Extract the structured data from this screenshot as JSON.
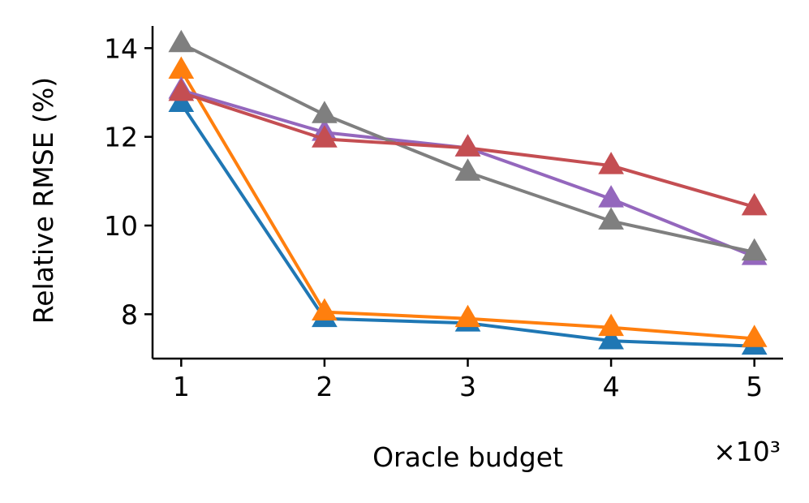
{
  "chart_data": {
    "type": "line",
    "xlabel": "Oracle budget",
    "ylabel": "Relative RMSE (%)",
    "x_multiplier_label": "×10³",
    "x": [
      1,
      2,
      3,
      4,
      5
    ],
    "x_ticks": [
      1,
      2,
      3,
      4,
      5
    ],
    "y_ticks": [
      8,
      10,
      12,
      14
    ],
    "xlim": [
      0.8,
      5.2
    ],
    "ylim": [
      7.0,
      14.5
    ],
    "grid": false,
    "marker": "triangle-up",
    "series": [
      {
        "color": "#1f77b4",
        "values": [
          12.75,
          7.9,
          7.8,
          7.4,
          7.28
        ]
      },
      {
        "color": "#ff7f0e",
        "values": [
          13.5,
          8.05,
          7.9,
          7.7,
          7.45
        ]
      },
      {
        "color": "#9467bd",
        "values": [
          13.05,
          12.1,
          11.75,
          10.6,
          9.3
        ]
      },
      {
        "color": "#7f7f7f",
        "values": [
          14.1,
          12.5,
          11.2,
          10.1,
          9.4
        ]
      },
      {
        "color": "#c44e52",
        "values": [
          13.0,
          11.95,
          11.75,
          11.35,
          10.42
        ]
      }
    ]
  }
}
